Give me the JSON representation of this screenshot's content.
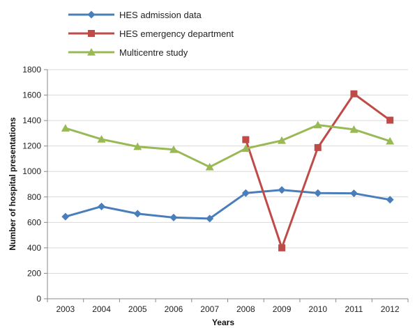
{
  "chart_data": {
    "type": "line",
    "title": "",
    "xlabel": "Years",
    "ylabel": "Number of hospital presentations",
    "ylim": [
      0,
      1800
    ],
    "yticks": [
      0,
      200,
      400,
      600,
      800,
      1000,
      1200,
      1400,
      1600,
      1800
    ],
    "categories": [
      "2003",
      "2004",
      "2005",
      "2006",
      "2007",
      "2008",
      "2009",
      "2010",
      "2011",
      "2012"
    ],
    "grid": true,
    "legend_position": "top-left",
    "series": [
      {
        "name": "HES admission data",
        "color": "#4a7ebb",
        "marker": "diamond",
        "values": [
          645,
          725,
          668,
          638,
          630,
          830,
          855,
          830,
          828,
          778
        ]
      },
      {
        "name": "HES emergency department",
        "color": "#be4b48",
        "marker": "square",
        "values": [
          null,
          null,
          null,
          null,
          null,
          1250,
          400,
          1188,
          1610,
          1403
        ]
      },
      {
        "name": "Multicentre study",
        "color": "#98b954",
        "marker": "triangle",
        "values": [
          1340,
          1253,
          1195,
          1172,
          1035,
          1180,
          1243,
          1365,
          1330,
          1238
        ]
      }
    ]
  }
}
